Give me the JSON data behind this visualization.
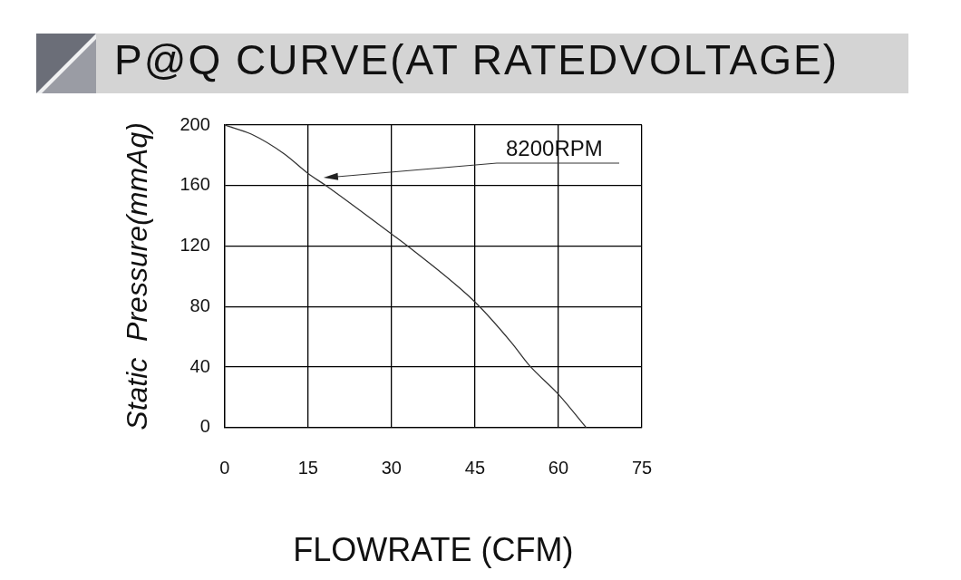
{
  "chart_data": {
    "type": "line",
    "title": "P@Q CURVE(AT RATEDVOLTAGE)",
    "xlabel": "FLOWRATE (CFM)",
    "ylabel": "Static  Pressure(mmAq)",
    "x": [
      0,
      4.8,
      10.7,
      15,
      18.2,
      30,
      32.9,
      45,
      51.6,
      54.8,
      60,
      65
    ],
    "series": [
      {
        "color": "#333333",
        "values": [
          200,
          194,
          181,
          168,
          160,
          128,
          120,
          83,
          56,
          41,
          22,
          0
        ]
      }
    ],
    "xlim": [
      0,
      75
    ],
    "xticks": [
      0,
      15,
      30,
      45,
      60,
      75
    ],
    "ylim": [
      0,
      200
    ],
    "yticks": [
      0,
      40,
      80,
      120,
      160,
      200
    ],
    "grid": true,
    "marker": "none",
    "line_style": "solid",
    "annotations": [
      "8200RPM"
    ]
  }
}
